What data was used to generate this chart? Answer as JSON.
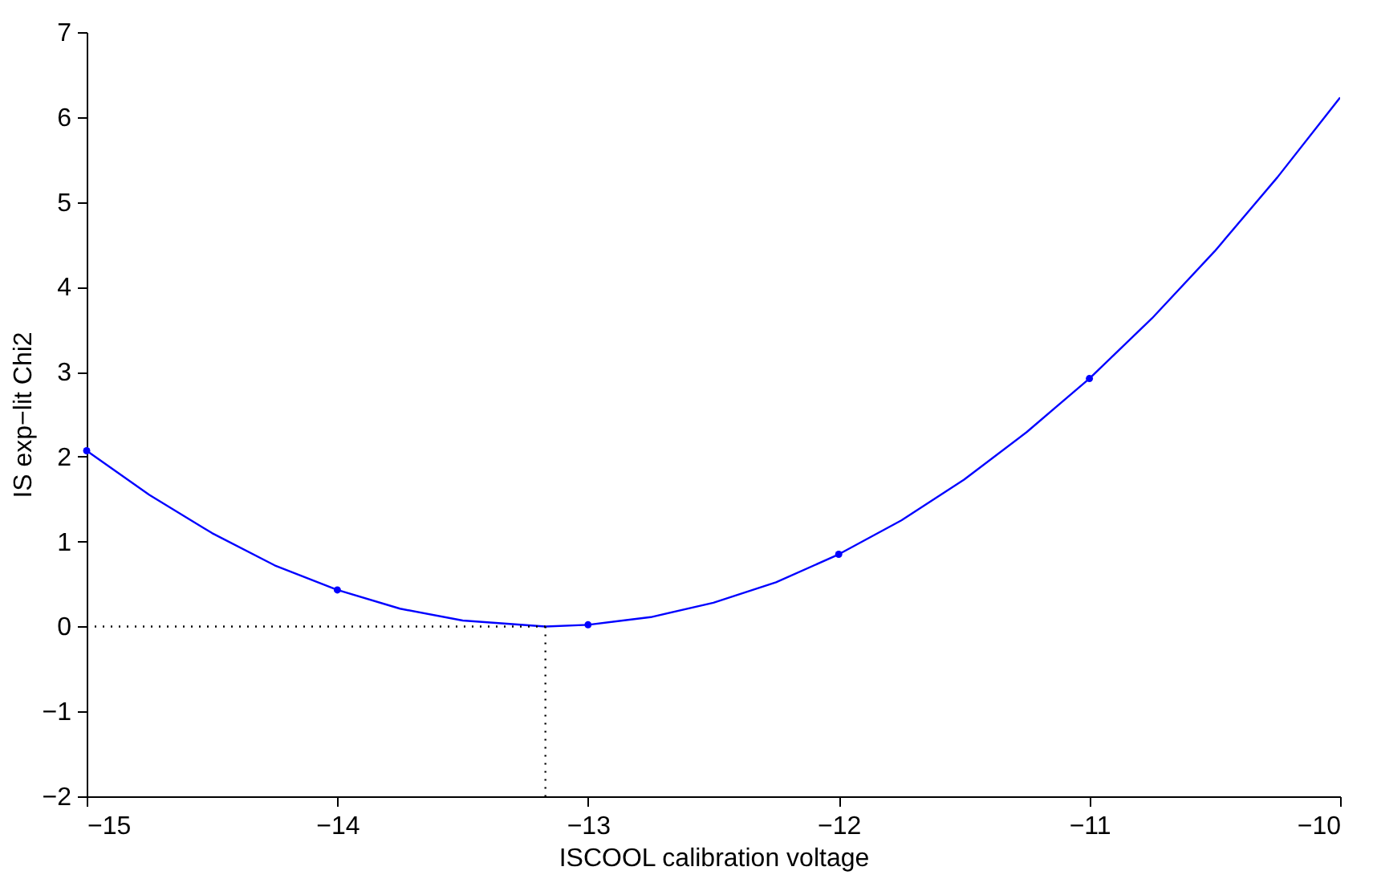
{
  "chart_data": {
    "type": "line",
    "xlabel": "ISCOOL calibration voltage",
    "ylabel": "IS exp−lit Chi2",
    "xlim": [
      -15,
      -10
    ],
    "xticks": [
      {
        "value": -15,
        "label": "−15"
      },
      {
        "value": -14,
        "label": "−14"
      },
      {
        "value": -13,
        "label": "−13"
      },
      {
        "value": -12,
        "label": "−12"
      },
      {
        "value": -11,
        "label": "−11"
      },
      {
        "value": -10,
        "label": "−10"
      }
    ],
    "ylim": [
      -2,
      7
    ],
    "yticks": [
      {
        "value": -2,
        "label": "−2"
      },
      {
        "value": -1,
        "label": "−1"
      },
      0,
      1,
      2,
      3,
      4,
      5,
      6,
      7
    ],
    "grid": false,
    "series": [
      {
        "color": "#0000ff",
        "line_style": "solid",
        "marker": "none",
        "x": [
          -15,
          -14.75,
          -14.5,
          -14.25,
          -14,
          -13.75,
          -13.5,
          -13.17,
          -13,
          -12.75,
          -12.5,
          -12.25,
          -12,
          -11.75,
          -11.5,
          -11.25,
          -11,
          -10.75,
          -10.5,
          -10.25,
          -10
        ],
        "values": [
          2.07,
          1.55,
          1.1,
          0.72,
          0.43,
          0.21,
          0.07,
          0,
          0.02,
          0.11,
          0.28,
          0.52,
          0.85,
          1.25,
          1.73,
          2.29,
          2.92,
          3.63,
          4.42,
          5.29,
          6.23
        ]
      },
      {
        "type": "scatter",
        "color": "#0000ff",
        "marker": "circle",
        "x": [
          -15,
          -14,
          -13,
          -12,
          -11
        ],
        "values": [
          2.07,
          0.43,
          0.02,
          0.85,
          2.92
        ]
      },
      {
        "type": "line",
        "color": "#000000",
        "line_style": "dotted",
        "marker": "none",
        "x": [
          -15,
          -13.17
        ],
        "values": [
          0,
          0
        ]
      },
      {
        "type": "line",
        "color": "#000000",
        "line_style": "dotted",
        "marker": "none",
        "x": [
          -13.17,
          -13.17
        ],
        "values": [
          0,
          -2
        ]
      }
    ]
  }
}
